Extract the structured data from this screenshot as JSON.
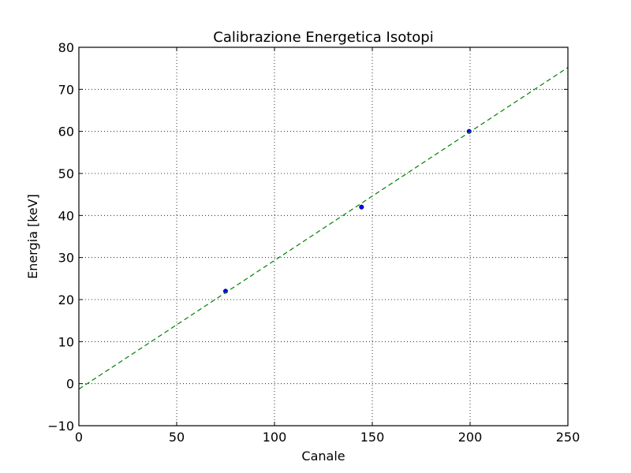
{
  "chart_data": {
    "type": "scatter",
    "title": "Calibrazione Energetica Isotopi",
    "xlabel": "Canale",
    "ylabel": "Energia [keV]",
    "xlim": [
      0,
      250
    ],
    "ylim": [
      -10,
      80
    ],
    "x_ticks": [
      0,
      50,
      100,
      150,
      200,
      250
    ],
    "y_ticks": [
      -10,
      0,
      10,
      20,
      30,
      40,
      50,
      60,
      70,
      80
    ],
    "x_tick_labels": [
      "0",
      "50",
      "100",
      "150",
      "200",
      "250"
    ],
    "y_tick_labels": [
      "−10",
      "0",
      "10",
      "20",
      "30",
      "40",
      "50",
      "60",
      "70",
      "80"
    ],
    "grid": true,
    "series": [
      {
        "type": "scatter",
        "x": [
          75,
          144.5,
          199.5
        ],
        "y": [
          22,
          42,
          60
        ],
        "color": "#0000ff",
        "marker": "circle"
      },
      {
        "type": "line",
        "style": "dashed",
        "x": [
          0,
          250
        ],
        "y": [
          -1.3,
          75.2
        ],
        "color": "#008000"
      }
    ]
  }
}
